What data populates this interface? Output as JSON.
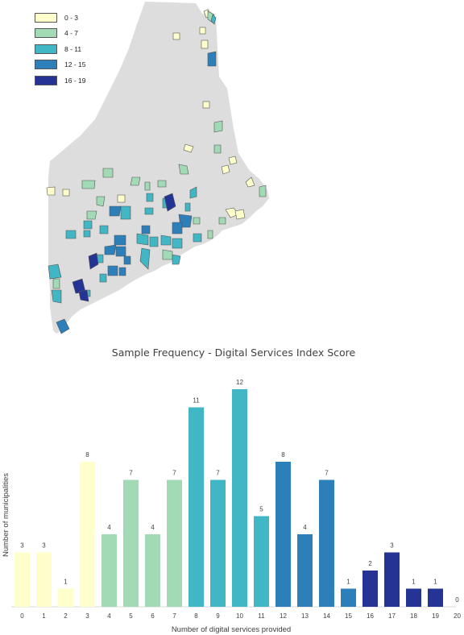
{
  "legend": {
    "items": [
      {
        "label": "0 - 3",
        "color": "#ffffcc"
      },
      {
        "label": "4 - 7",
        "color": "#a1dab4"
      },
      {
        "label": "8 - 11",
        "color": "#41b6c4"
      },
      {
        "label": "12 - 15",
        "color": "#2c7fb8"
      },
      {
        "label": "16 - 19",
        "color": "#253494"
      }
    ]
  },
  "map": {
    "land_color": "#dddddd",
    "border_color": "#555555"
  },
  "chart_data": {
    "type": "bar",
    "title": "Sample Frequency - Digital Services Index Score",
    "xlabel": "Number of digital services provided",
    "ylabel": "Number of municipalities",
    "categories": [
      "0",
      "1",
      "2",
      "3",
      "4",
      "5",
      "6",
      "7",
      "8",
      "9",
      "10",
      "11",
      "12",
      "13",
      "14",
      "15",
      "16",
      "17",
      "18",
      "19",
      "20"
    ],
    "values": [
      3,
      3,
      1,
      8,
      4,
      7,
      4,
      7,
      11,
      7,
      12,
      5,
      8,
      4,
      7,
      1,
      2,
      3,
      1,
      1,
      0
    ],
    "colors": [
      "#ffffcc",
      "#ffffcc",
      "#ffffcc",
      "#ffffcc",
      "#a1dab4",
      "#a1dab4",
      "#a1dab4",
      "#a1dab4",
      "#41b6c4",
      "#41b6c4",
      "#41b6c4",
      "#41b6c4",
      "#2c7fb8",
      "#2c7fb8",
      "#2c7fb8",
      "#2c7fb8",
      "#253494",
      "#253494",
      "#253494",
      "#253494",
      "#253494"
    ],
    "ylim": [
      0,
      12
    ],
    "grid": false,
    "legend": "top-left"
  }
}
